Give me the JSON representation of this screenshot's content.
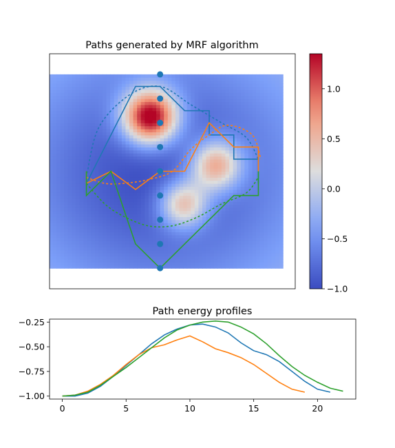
{
  "chart_data": [
    {
      "type": "heatmap",
      "title": "Paths generated by MRF algorithm",
      "field": {
        "grid_x": [
          -1.0,
          1.0
        ],
        "grid_y": [
          -0.8,
          0.8
        ],
        "background": {
          "amplitude": 1.0,
          "sigma_x": 0.9,
          "sigma_y": 0.8
        },
        "bumps": [
          {
            "x": -0.08,
            "y": 0.45,
            "amp": 2.3,
            "sigma": 0.16
          },
          {
            "x": 0.45,
            "y": 0.05,
            "amp": 1.45,
            "sigma": 0.15
          },
          {
            "x": 0.19,
            "y": -0.27,
            "amp": 1.3,
            "sigma": 0.14
          }
        ]
      },
      "points": {
        "x": [
          0,
          0,
          0,
          0,
          0,
          0,
          0,
          0,
          0
        ],
        "y": [
          0.8,
          0.6,
          0.4,
          0.2,
          0.0,
          -0.2,
          -0.4,
          -0.6,
          -0.8
        ],
        "color": "#1f77b4"
      },
      "paths": [
        {
          "color": "#1f77b4",
          "solid": [
            [
              -0.6,
              -0.1
            ],
            [
              -0.2,
              0.7
            ],
            [
              0.0,
              0.7
            ],
            [
              0.2,
              0.5
            ],
            [
              0.4,
              0.5
            ],
            [
              0.4,
              0.3
            ],
            [
              0.6,
              0.3
            ],
            [
              0.6,
              0.1
            ],
            [
              0.8,
              0.1
            ],
            [
              0.8,
              -0.1
            ]
          ],
          "dashed": [
            [
              -0.6,
              -0.05
            ],
            [
              -0.5,
              0.36
            ],
            [
              -0.25,
              0.63
            ],
            [
              0.0,
              0.7
            ],
            [
              0.25,
              0.55
            ],
            [
              0.5,
              0.4
            ],
            [
              0.7,
              0.28
            ],
            [
              0.8,
              0.1
            ]
          ]
        },
        {
          "color": "#ff7f0e",
          "solid": [
            [
              -0.6,
              0.0
            ],
            [
              -0.6,
              -0.1
            ],
            [
              -0.4,
              0.0
            ],
            [
              -0.2,
              -0.15
            ],
            [
              0.0,
              0.0
            ],
            [
              0.2,
              0.0
            ],
            [
              0.4,
              0.4
            ],
            [
              0.6,
              0.2
            ],
            [
              0.8,
              0.2
            ],
            [
              0.8,
              0.0
            ]
          ],
          "dashed": [
            [
              -0.6,
              -0.05
            ],
            [
              -0.45,
              -0.1
            ],
            [
              -0.3,
              -0.1
            ],
            [
              -0.1,
              -0.07
            ],
            [
              0.1,
              0.0
            ],
            [
              0.25,
              0.18
            ],
            [
              0.4,
              0.3
            ],
            [
              0.55,
              0.38
            ],
            [
              0.75,
              0.3
            ],
            [
              0.82,
              0.1
            ]
          ]
        },
        {
          "color": "#2ca02c",
          "solid": [
            [
              -0.6,
              0.0
            ],
            [
              -0.6,
              -0.2
            ],
            [
              -0.4,
              0.0
            ],
            [
              -0.2,
              -0.6
            ],
            [
              0.0,
              -0.8
            ],
            [
              0.2,
              -0.6
            ],
            [
              0.4,
              -0.4
            ],
            [
              0.6,
              -0.2
            ],
            [
              0.8,
              -0.2
            ],
            [
              0.8,
              0.0
            ]
          ],
          "dashed": [
            [
              -0.6,
              -0.1
            ],
            [
              -0.45,
              -0.27
            ],
            [
              -0.3,
              -0.37
            ],
            [
              -0.1,
              -0.45
            ],
            [
              0.1,
              -0.45
            ],
            [
              0.3,
              -0.38
            ],
            [
              0.5,
              -0.27
            ],
            [
              0.7,
              -0.18
            ],
            [
              0.8,
              -0.05
            ]
          ]
        }
      ],
      "colorbar": {
        "cmap": "coolwarm",
        "vmin": -1.0,
        "vmax": 1.35,
        "ticks": [
          -1.0,
          -0.5,
          0.0,
          0.5,
          1.0
        ],
        "tick_labels": [
          "−1.0",
          "−0.5",
          "0.0",
          "0.5",
          "1.0"
        ]
      },
      "axes_visible": false,
      "xlim": [
        -0.9,
        1.1
      ],
      "ylim": [
        -0.97,
        0.97
      ]
    },
    {
      "type": "line",
      "title": "Path energy profiles",
      "xlim": [
        -1,
        23
      ],
      "ylim": [
        -1.03,
        -0.22
      ],
      "xticks": [
        0,
        5,
        10,
        15,
        20
      ],
      "xtick_labels": [
        "0",
        "5",
        "10",
        "15",
        "20"
      ],
      "yticks": [
        -1.0,
        -0.75,
        -0.5,
        -0.25
      ],
      "ytick_labels": [
        "−1.00",
        "−0.75",
        "−0.50",
        "−0.25"
      ],
      "series": [
        {
          "color": "#1f77b4",
          "x": [
            0,
            1,
            2,
            3,
            4,
            5,
            6,
            7,
            8,
            9,
            10,
            11,
            12,
            13,
            14,
            15,
            16,
            17,
            18,
            19,
            20,
            21
          ],
          "y": [
            -1.0,
            -1.0,
            -0.97,
            -0.9,
            -0.8,
            -0.69,
            -0.58,
            -0.47,
            -0.38,
            -0.32,
            -0.28,
            -0.27,
            -0.3,
            -0.36,
            -0.46,
            -0.54,
            -0.58,
            -0.65,
            -0.75,
            -0.85,
            -0.93,
            -0.96
          ]
        },
        {
          "color": "#ff7f0e",
          "x": [
            0,
            1,
            2,
            3,
            4,
            5,
            6,
            7,
            8,
            9,
            10,
            11,
            12,
            13,
            14,
            15,
            16,
            17,
            18,
            19
          ],
          "y": [
            -1.0,
            -0.99,
            -0.95,
            -0.88,
            -0.79,
            -0.68,
            -0.58,
            -0.51,
            -0.48,
            -0.43,
            -0.39,
            -0.45,
            -0.52,
            -0.56,
            -0.61,
            -0.68,
            -0.77,
            -0.86,
            -0.93,
            -0.96
          ]
        },
        {
          "color": "#2ca02c",
          "x": [
            0,
            1,
            2,
            3,
            4,
            5,
            6,
            7,
            8,
            9,
            10,
            11,
            12,
            13,
            14,
            15,
            16,
            17,
            18,
            19,
            20,
            21,
            22
          ],
          "y": [
            -1.0,
            -0.99,
            -0.96,
            -0.89,
            -0.8,
            -0.71,
            -0.61,
            -0.51,
            -0.41,
            -0.33,
            -0.28,
            -0.25,
            -0.24,
            -0.25,
            -0.3,
            -0.37,
            -0.47,
            -0.59,
            -0.7,
            -0.79,
            -0.86,
            -0.92,
            -0.95
          ]
        }
      ]
    }
  ]
}
